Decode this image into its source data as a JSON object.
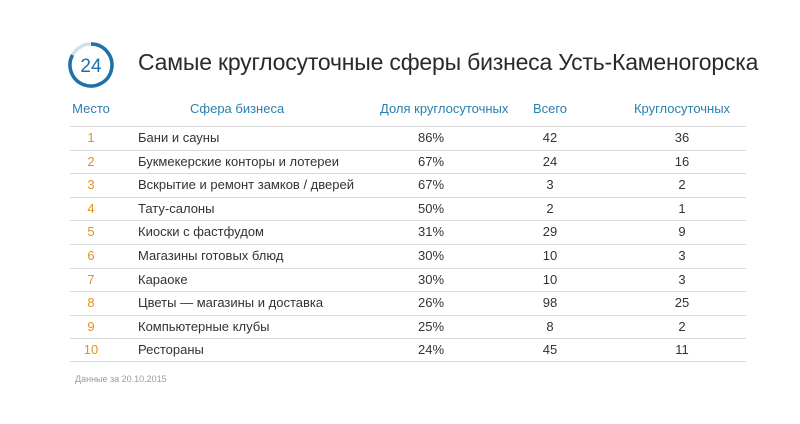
{
  "logo": {
    "text": "24",
    "accent": "#1f6fa8",
    "track": "#cfe0ee"
  },
  "title": "Самые круглосуточные сферы бизнеса Усть-Каменогорска",
  "columns": {
    "rank": "Место",
    "sphere": "Сфера бизнеса",
    "share": "Доля круглосуточных",
    "total": "Всего",
    "round": "Круглосуточных"
  },
  "chart_data": {
    "type": "table",
    "title": "Самые круглосуточные сферы бизнеса Усть-Каменогорска",
    "headers": [
      "Место",
      "Сфера бизнеса",
      "Доля круглосуточных",
      "Всего",
      "Круглосуточных"
    ],
    "rows": [
      {
        "rank": "1",
        "sphere": "Бани и сауны",
        "share": "86%",
        "total": "42",
        "round": "36"
      },
      {
        "rank": "2",
        "sphere": "Букмекерские конторы и лотереи",
        "share": "67%",
        "total": "24",
        "round": "16"
      },
      {
        "rank": "3",
        "sphere": "Вскрытие и ремонт замков / дверей",
        "share": "67%",
        "total": "3",
        "round": "2"
      },
      {
        "rank": "4",
        "sphere": "Тату-салоны",
        "share": "50%",
        "total": "2",
        "round": "1"
      },
      {
        "rank": "5",
        "sphere": "Киоски с фастфудом",
        "share": "31%",
        "total": "29",
        "round": "9"
      },
      {
        "rank": "6",
        "sphere": "Магазины готовых блюд",
        "share": "30%",
        "total": "10",
        "round": "3"
      },
      {
        "rank": "7",
        "sphere": "Караоке",
        "share": "30%",
        "total": "10",
        "round": "3"
      },
      {
        "rank": "8",
        "sphere": "Цветы — магазины и доставка",
        "share": "26%",
        "total": "98",
        "round": "25"
      },
      {
        "rank": "9",
        "sphere": "Компьютерные клубы",
        "share": "25%",
        "total": "8",
        "round": "2"
      },
      {
        "rank": "10",
        "sphere": "Рестораны",
        "share": "24%",
        "total": "45",
        "round": "11"
      }
    ]
  },
  "colors": {
    "header": "#2a7fb0",
    "rank": "#e3901e",
    "rule": "#d9d9d9"
  },
  "note": "Данные за 20.10.2015"
}
